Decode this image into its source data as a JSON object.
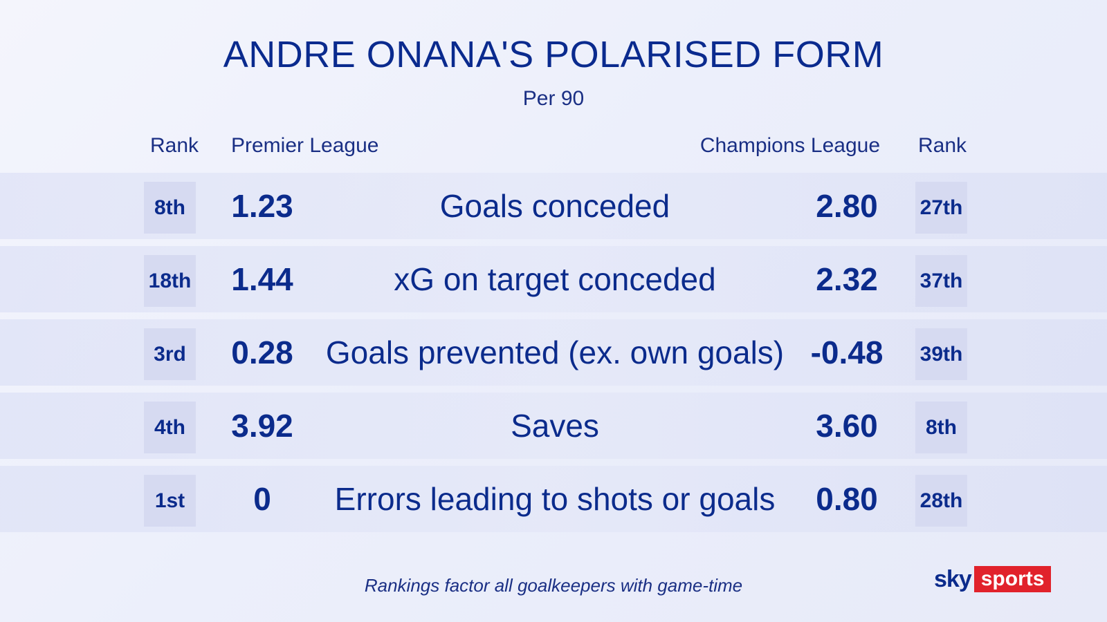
{
  "chart_data": {
    "type": "table",
    "title": "ANDRE ONANA'S POLARISED FORM",
    "subtitle": "Per 90",
    "columns": {
      "rank_left": "Rank",
      "left": "Premier League",
      "right": "Champions League",
      "rank_right": "Rank"
    },
    "rows": [
      {
        "metric": "Goals conceded",
        "pl_rank": "8th",
        "pl_value": "1.23",
        "cl_value": "2.80",
        "cl_rank": "27th"
      },
      {
        "metric": "xG on target conceded",
        "pl_rank": "18th",
        "pl_value": "1.44",
        "cl_value": "2.32",
        "cl_rank": "37th"
      },
      {
        "metric": "Goals prevented (ex. own goals)",
        "pl_rank": "3rd",
        "pl_value": "0.28",
        "cl_value": "-0.48",
        "cl_rank": "39th"
      },
      {
        "metric": "Saves",
        "pl_rank": "4th",
        "pl_value": "3.92",
        "cl_value": "3.60",
        "cl_rank": "8th"
      },
      {
        "metric": "Errors leading to shots or goals",
        "pl_rank": "1st",
        "pl_value": "0",
        "cl_value": "0.80",
        "cl_rank": "28th"
      }
    ],
    "footnote": "Rankings factor all goalkeepers with game-time"
  },
  "logo": {
    "part1": "sky",
    "part2": "sports"
  },
  "colors": {
    "text": "#0b2b8c",
    "rank_box": "#d6daf1",
    "brand_red": "#e1222b"
  }
}
